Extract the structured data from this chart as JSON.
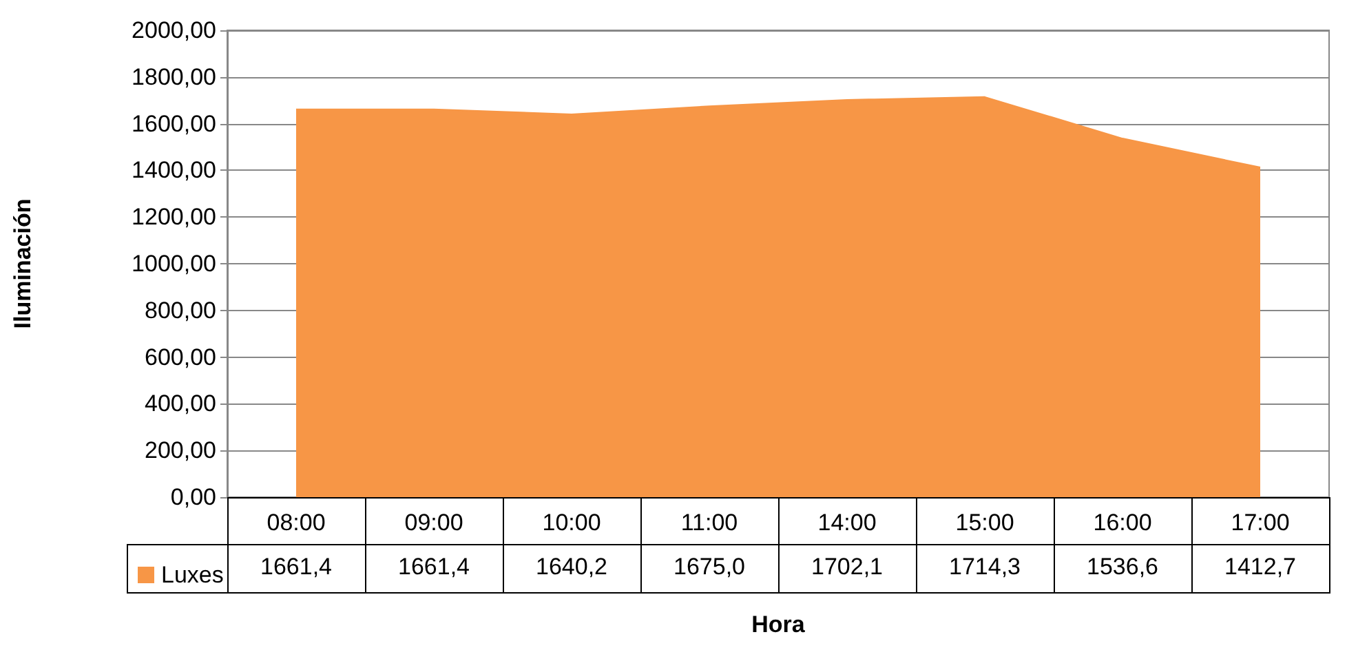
{
  "chart_data": {
    "type": "area",
    "xlabel": "Hora",
    "ylabel": "Iluminación",
    "categories": [
      "08:00",
      "09:00",
      "10:00",
      "11:00",
      "14:00",
      "15:00",
      "16:00",
      "17:00"
    ],
    "series": [
      {
        "name": "Luxes",
        "color": "#f79646",
        "values": [
          1661.4,
          1661.4,
          1640.2,
          1675.0,
          1702.1,
          1714.3,
          1536.6,
          1412.7
        ],
        "value_labels": [
          "1661,4",
          "1661,4",
          "1640,2",
          "1675,0",
          "1702,1",
          "1714,3",
          "1536,6",
          "1412,7"
        ]
      }
    ],
    "ylim": [
      0,
      2000
    ],
    "yticks": [
      {
        "value": 0,
        "label": "0,00"
      },
      {
        "value": 200,
        "label": "200,00"
      },
      {
        "value": 400,
        "label": "400,00"
      },
      {
        "value": 600,
        "label": "600,00"
      },
      {
        "value": 800,
        "label": "800,00"
      },
      {
        "value": 1000,
        "label": "1000,00"
      },
      {
        "value": 1200,
        "label": "1200,00"
      },
      {
        "value": 1400,
        "label": "1400,00"
      },
      {
        "value": 1600,
        "label": "1600,00"
      },
      {
        "value": 1800,
        "label": "1800,00"
      },
      {
        "value": 2000,
        "label": "2000,00"
      }
    ],
    "grid": "y",
    "legend": "bottom"
  }
}
